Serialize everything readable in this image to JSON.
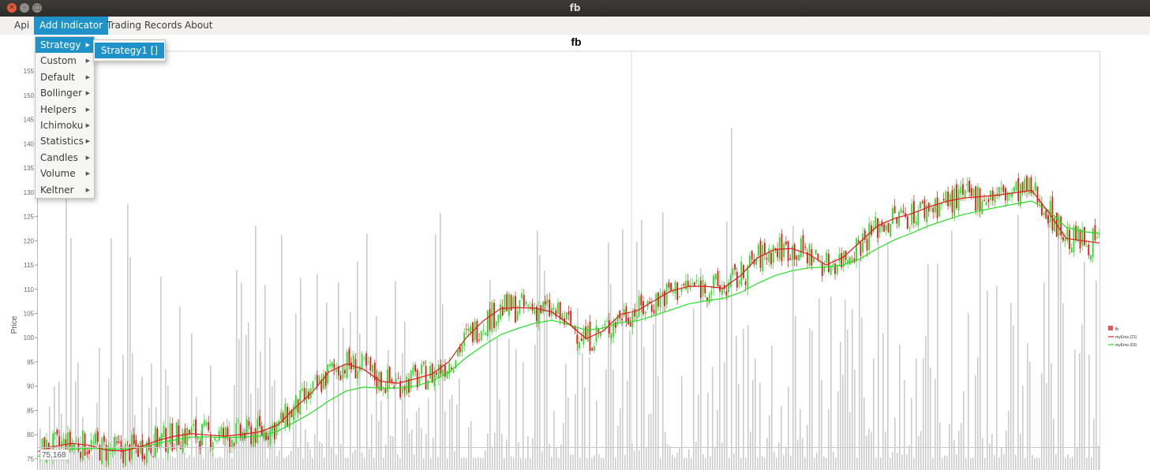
{
  "window": {
    "title": "fb",
    "close_glyph": "✕",
    "min_glyph": "–",
    "max_glyph": "□"
  },
  "menubar": {
    "items": [
      "Api",
      "Add Indicator",
      "Trading Records",
      "About"
    ],
    "active": "Add Indicator"
  },
  "dropdown": {
    "items": [
      "Strategy",
      "Custom",
      "Default",
      "Bollinger",
      "Helpers",
      "Ichimoku",
      "Statistics",
      "Candles",
      "Volume",
      "Keltner"
    ],
    "active": "Strategy",
    "submenu": [
      "Strategy1 []"
    ]
  },
  "colors": {
    "accent": "#1f93c9",
    "bull": "#22e022",
    "bear": "#e01818",
    "ema_short": "#e31a1c",
    "ema_long": "#22dd22",
    "volume": "#cccccc"
  },
  "chart_data": {
    "type": "line",
    "title": "fb",
    "ylabel": "Price",
    "yticks": [
      75,
      80,
      85,
      90,
      95,
      100,
      105,
      110,
      115,
      120,
      125,
      130,
      135,
      140,
      145,
      150,
      155
    ],
    "ylim": [
      72.7,
      159.1
    ],
    "crosshair_value": "75,168",
    "legend_position": "right",
    "legend": [
      "fb",
      "myEma (21)",
      "myEma (63)"
    ],
    "series": [
      {
        "name": "myEma (21)",
        "values": [
          76.5,
          77.6,
          78.2,
          77.8,
          76.8,
          76.6,
          77.5,
          78.8,
          79.7,
          80.2,
          79.9,
          79.7,
          80.1,
          80.6,
          82.0,
          85.5,
          88.7,
          93.0,
          94.6,
          93.5,
          91.0,
          90.6,
          91.5,
          92.5,
          95.1,
          100.0,
          103.5,
          106.0,
          106.2,
          106.1,
          105.3,
          102.8,
          99.8,
          101.4,
          104.8,
          105.6,
          107.7,
          109.7,
          110.6,
          110.6,
          110.2,
          112.8,
          116.5,
          118.2,
          118.4,
          117.2,
          115.0,
          116.6,
          119.8,
          123.1,
          124.6,
          125.6,
          127.0,
          128.1,
          128.8,
          129.1,
          129.4,
          129.9,
          130.4,
          125.8,
          120.5,
          120.0,
          119.5
        ]
      },
      {
        "name": "myEma (63)",
        "values": [
          75.5,
          76.3,
          77.0,
          77.2,
          77.0,
          77.0,
          77.3,
          78.2,
          78.9,
          79.5,
          79.5,
          79.4,
          79.5,
          79.7,
          80.7,
          82.6,
          84.6,
          87.0,
          89.0,
          89.8,
          89.6,
          89.6,
          90.0,
          91.0,
          92.9,
          95.9,
          98.4,
          100.6,
          101.9,
          103.0,
          103.6,
          102.7,
          101.5,
          102.0,
          103.1,
          103.5,
          104.6,
          105.8,
          107.0,
          107.6,
          108.1,
          109.3,
          111.2,
          112.8,
          113.8,
          114.4,
          114.6,
          115.0,
          116.3,
          118.4,
          120.2,
          121.6,
          123.1,
          124.3,
          125.4,
          126.2,
          126.9,
          127.6,
          128.2,
          126.2,
          122.8,
          121.9,
          121.5
        ]
      }
    ]
  }
}
